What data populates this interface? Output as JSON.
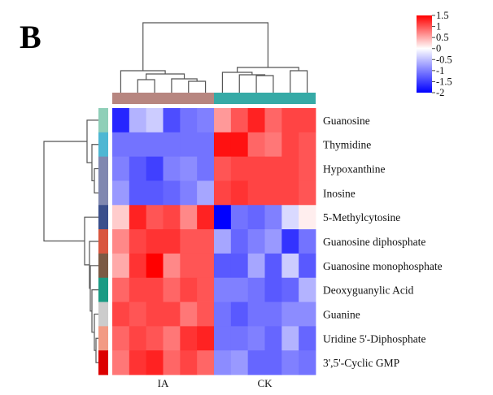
{
  "panel_label": "B",
  "chart_data": {
    "type": "heatmap",
    "title": "",
    "xlabel": "",
    "ylabel": "",
    "rows": [
      "Guanosine",
      "Thymidine",
      "Hypoxanthine",
      "Inosine",
      "5-Methylcytosine",
      "Guanosine diphosphate",
      "Guanosine monophosphate",
      "Deoxyguanylic Acid",
      "Guanine",
      "Uridine 5'-Diphosphate",
      "3',5'-Cyclic GMP"
    ],
    "column_groups": [
      {
        "name": "IA",
        "count": 6,
        "color": "#b78680"
      },
      {
        "name": "CK",
        "count": 6,
        "color": "#36aaa6"
      }
    ],
    "values": [
      [
        -1.7,
        -0.6,
        -0.4,
        -1.4,
        -1.1,
        -1.0,
        0.6,
        1.0,
        1.3,
        0.9,
        1.1,
        1.1
      ],
      [
        -1.1,
        -1.1,
        -1.1,
        -1.1,
        -1.1,
        -1.1,
        1.4,
        1.4,
        0.9,
        0.8,
        1.1,
        1.0
      ],
      [
        -1.0,
        -1.3,
        -1.5,
        -1.0,
        -0.9,
        -1.1,
        1.0,
        1.1,
        1.1,
        1.1,
        1.1,
        1.0
      ],
      [
        -0.8,
        -1.3,
        -1.3,
        -1.2,
        -1.0,
        -0.7,
        1.1,
        1.2,
        1.1,
        1.1,
        1.1,
        1.0
      ],
      [
        0.3,
        1.3,
        1.0,
        1.1,
        0.7,
        1.3,
        -2.0,
        -1.1,
        -1.2,
        -1.0,
        -0.3,
        0.1
      ],
      [
        0.7,
        1.1,
        1.2,
        1.2,
        1.0,
        1.0,
        -0.7,
        -1.2,
        -1.0,
        -0.8,
        -1.6,
        -1.1
      ],
      [
        0.5,
        1.2,
        1.5,
        0.7,
        1.0,
        1.0,
        -1.3,
        -1.3,
        -0.7,
        -1.3,
        -0.4,
        -1.3
      ],
      [
        0.9,
        1.1,
        1.1,
        0.9,
        1.1,
        1.0,
        -1.0,
        -1.0,
        -1.1,
        -1.3,
        -1.2,
        -0.6
      ],
      [
        1.1,
        1.0,
        1.1,
        1.1,
        0.8,
        1.0,
        -1.1,
        -1.3,
        -1.1,
        -1.1,
        -0.9,
        -0.9
      ],
      [
        0.9,
        1.1,
        1.0,
        0.8,
        1.2,
        1.3,
        -1.1,
        -1.1,
        -1.0,
        -1.2,
        -0.6,
        -1.2
      ],
      [
        0.8,
        1.2,
        1.3,
        0.9,
        1.1,
        0.9,
        -0.9,
        -0.8,
        -1.2,
        -1.2,
        -1.0,
        -1.1
      ]
    ],
    "row_annotation_colors": [
      "#8fcfb8",
      "#4eb7d3",
      "#8088b0",
      "#8088b0",
      "#3a4f8c",
      "#d9563e",
      "#7b5a44",
      "#1a9b84",
      "#cccccc",
      "#f29b84",
      "#dc0000"
    ],
    "color_scale": {
      "min": -2,
      "max": 1.5,
      "mid": 0,
      "low_color": "#0000ff",
      "mid_color": "#ffffff",
      "high_color": "#ff0000",
      "ticks": [
        "1.5",
        "1",
        "0.5",
        "0",
        "-0.5",
        "-1",
        "-1.5",
        "-2"
      ],
      "tick_values": [
        1.5,
        1,
        0.5,
        0,
        -0.5,
        -1,
        -1.5,
        -2
      ],
      "legend_position": "top-right"
    },
    "column_dendrogram": "two main clusters (IA, CK)",
    "row_dendrogram": "two main clusters (rows 1-4, rows 5-11)"
  }
}
